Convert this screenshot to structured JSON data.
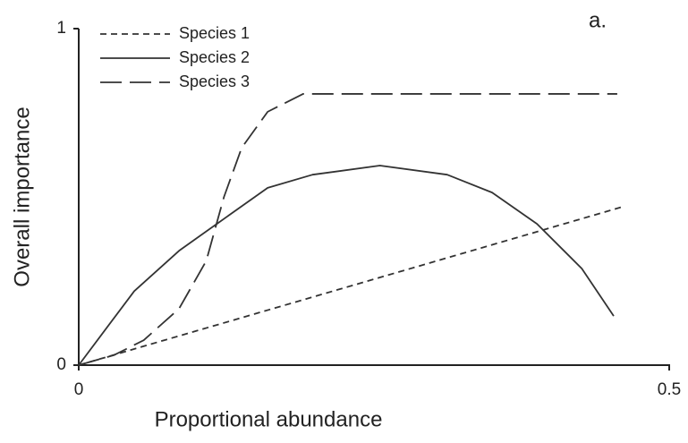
{
  "chart_data": {
    "type": "line",
    "xlabel": "Proportional abundance",
    "ylabel": "Overall importance",
    "annotation": "a.",
    "xlim": [
      0,
      0.5
    ],
    "ylim": [
      0,
      1
    ],
    "xticks": [
      0,
      0.5
    ],
    "yticks": [
      0,
      1
    ],
    "series": [
      {
        "name": "Species 1",
        "color": "#333333",
        "style": "short-dash",
        "x": [
          0,
          0.46
        ],
        "values": [
          0,
          0.47
        ]
      },
      {
        "name": "Species 2",
        "color": "#333333",
        "style": "solid",
        "x": [
          0,
          0.047,
          0.085,
          0.117,
          0.16,
          0.198,
          0.255,
          0.312,
          0.35,
          0.388,
          0.426,
          0.453
        ],
        "values": [
          0,
          0.22,
          0.34,
          0.42,
          0.527,
          0.566,
          0.593,
          0.566,
          0.513,
          0.42,
          0.287,
          0.146
        ]
      },
      {
        "name": "Species 3",
        "color": "#333333",
        "style": "long-dash",
        "x": [
          0,
          0.03,
          0.055,
          0.085,
          0.108,
          0.123,
          0.138,
          0.16,
          0.19,
          0.456
        ],
        "values": [
          0,
          0.03,
          0.074,
          0.168,
          0.31,
          0.5,
          0.646,
          0.753,
          0.806,
          0.806
        ]
      }
    ]
  }
}
